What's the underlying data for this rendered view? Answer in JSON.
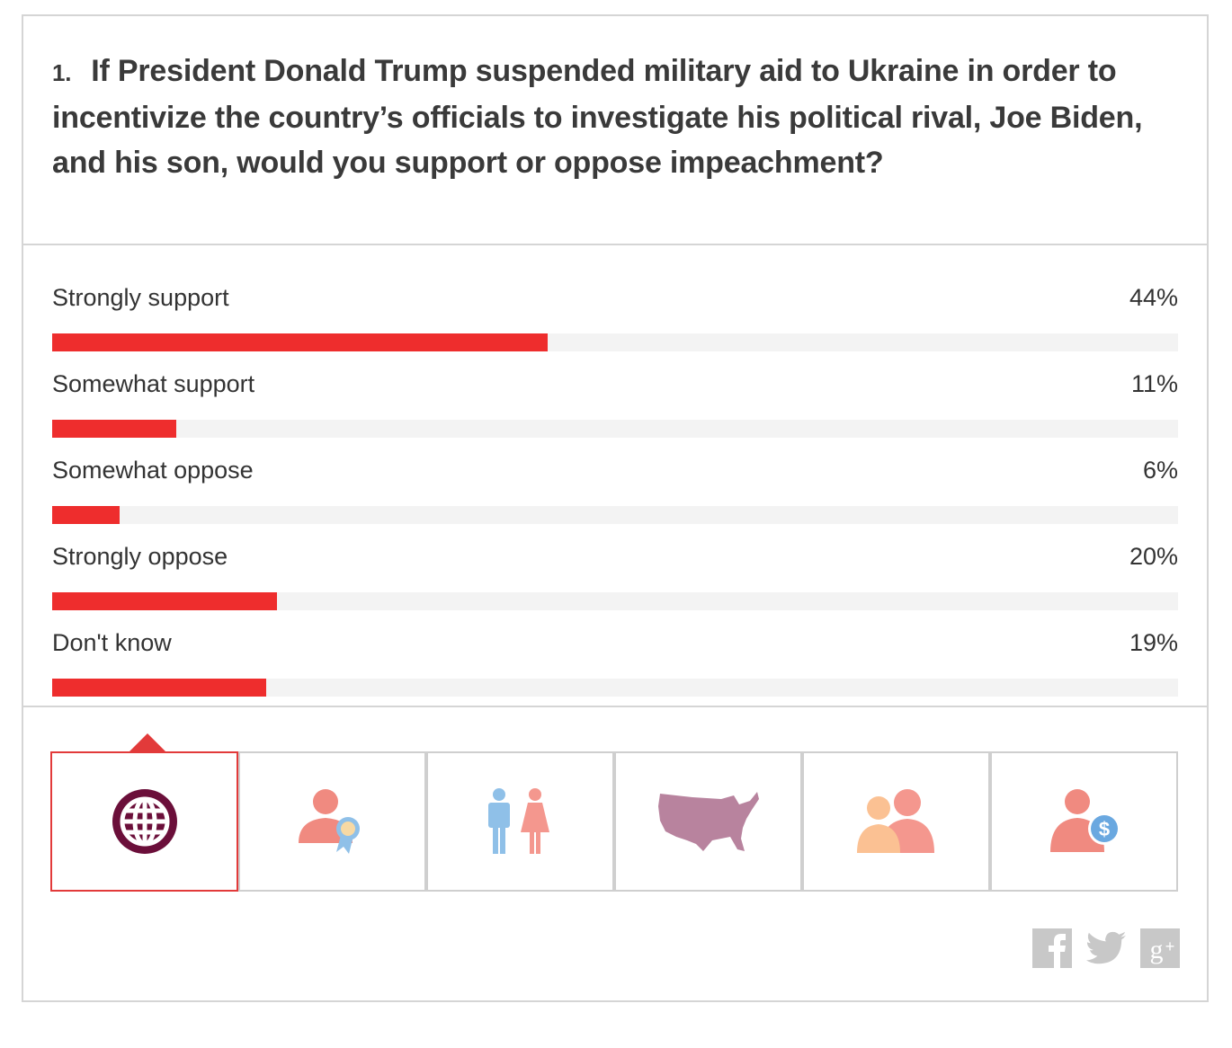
{
  "question": {
    "number": "1.",
    "text": "If President Donald Trump suspended military aid to Ukraine in order to incentivize the country’s officials to investigate his political rival, Joe Biden, and his son, would you support or oppose impeachment?"
  },
  "chart_data": {
    "type": "bar",
    "categories": [
      "Strongly support",
      "Somewhat support",
      "Somewhat oppose",
      "Strongly oppose",
      "Don't know"
    ],
    "values": [
      44,
      11,
      6,
      20,
      19
    ],
    "value_labels": [
      "44%",
      "11%",
      "6%",
      "20%",
      "19%"
    ],
    "ylim": [
      0,
      100
    ],
    "orientation": "horizontal",
    "bar_color": "#ee2d2d",
    "track_color": "#f3f3f3"
  },
  "tabs": [
    {
      "icon": "globe-icon",
      "active": true
    },
    {
      "icon": "person-award-icon",
      "active": false
    },
    {
      "icon": "man-woman-icon",
      "active": false
    },
    {
      "icon": "usa-map-icon",
      "active": false
    },
    {
      "icon": "two-people-icon",
      "active": false
    },
    {
      "icon": "person-dollar-icon",
      "active": false
    }
  ],
  "share": [
    "facebook-icon",
    "twitter-icon",
    "google-plus-icon"
  ],
  "colors": {
    "accent": "#ee2d2d",
    "globe": "#6b0f3a",
    "person": "#f08a80",
    "award": "#8fc0e8",
    "map": "#b8839e",
    "share_icon": "#c8c8c8"
  }
}
